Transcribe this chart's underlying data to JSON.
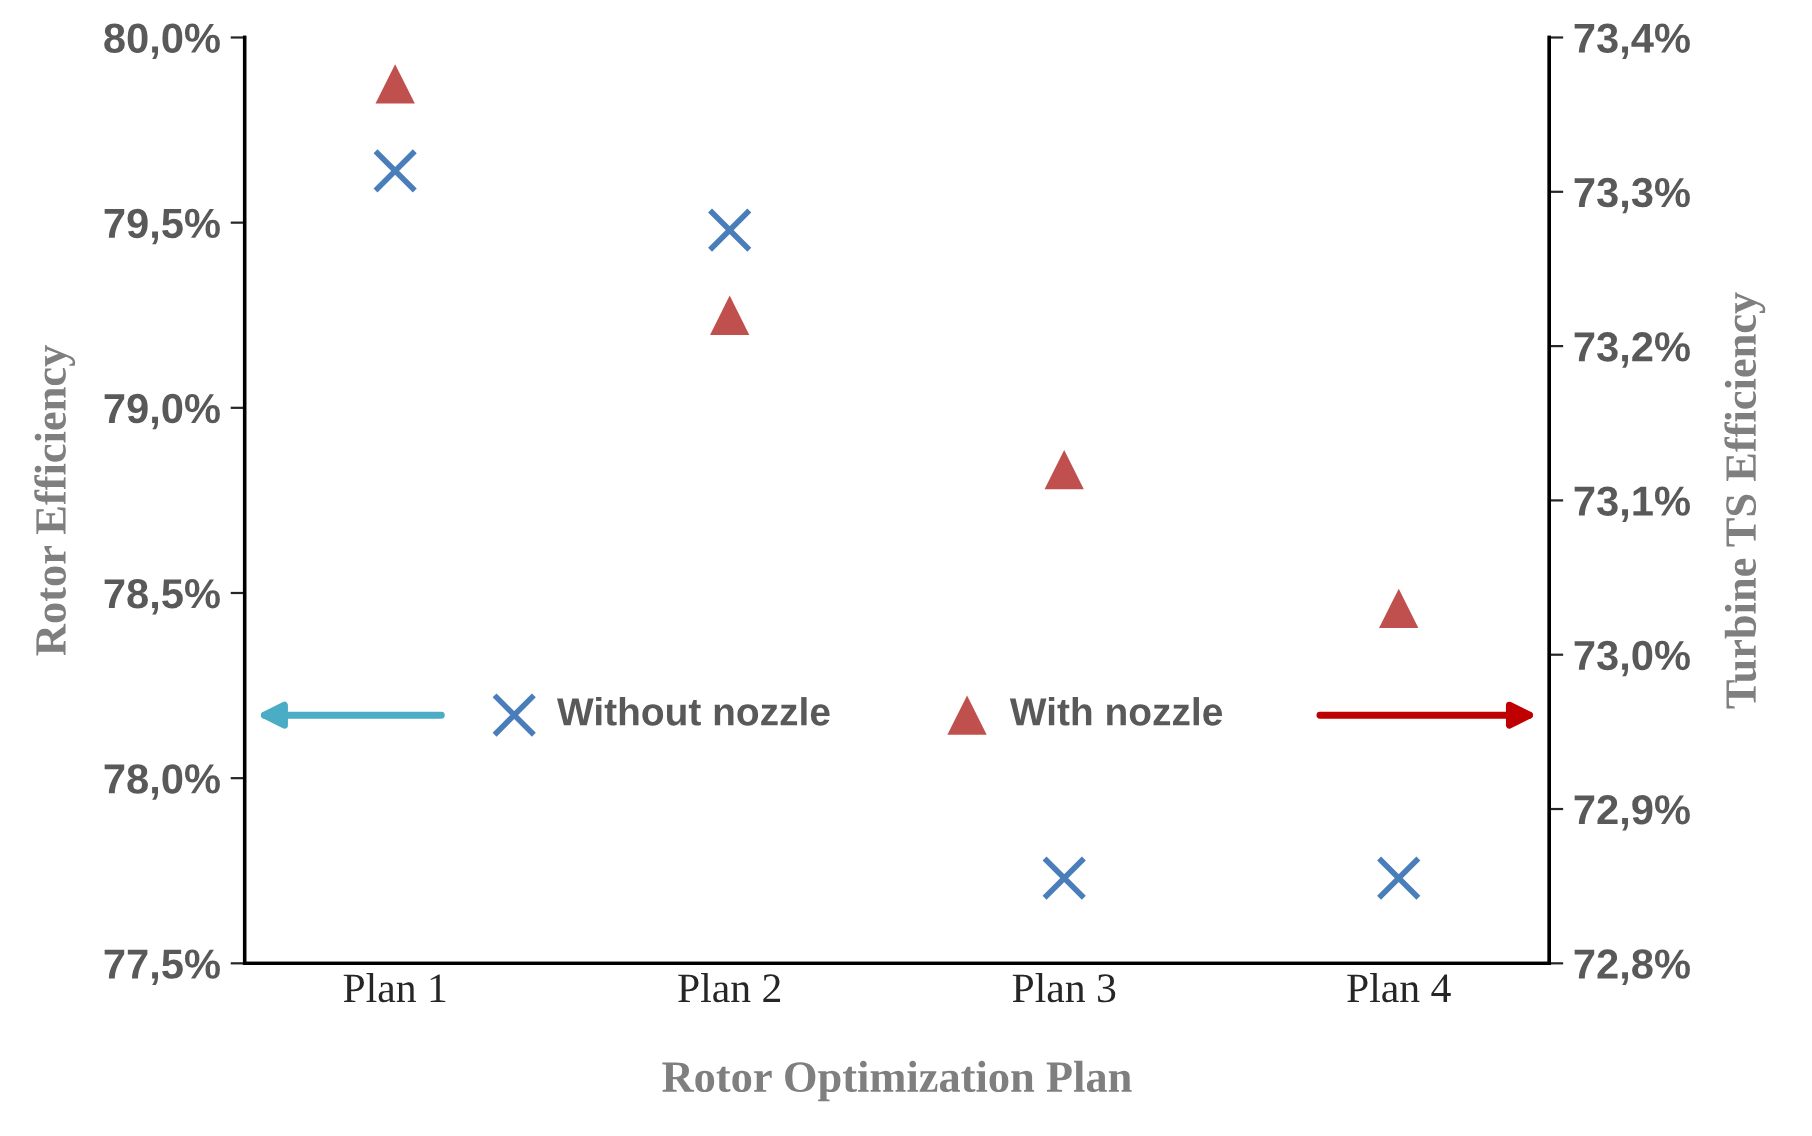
{
  "chart_data": {
    "type": "scatter",
    "xlabel": "Rotor Optimization Plan",
    "ylabel": "Rotor Efficiency",
    "y2label": "Turbine TS Efficiency",
    "categories": [
      "Plan 1",
      "Plan 2",
      "Plan 3",
      "Plan 4"
    ],
    "series": [
      {
        "name": "Without nozzle",
        "color": "#4a7ebb",
        "marker": "cross",
        "values": [
          79.64,
          79.48,
          77.73,
          77.73
        ]
      },
      {
        "name": "With nozzle",
        "color": "#c0504d",
        "marker": "triangle",
        "axis": "y2",
        "values": [
          73.37,
          73.22,
          73.12,
          73.03
        ]
      }
    ],
    "ylim": [
      77.5,
      80.0
    ],
    "yticks": [
      {
        "value": 77.5,
        "label": "77,5%"
      },
      {
        "value": 78.0,
        "label": "78,0%"
      },
      {
        "value": 78.5,
        "label": "78,5%"
      },
      {
        "value": 79.0,
        "label": "79,0%"
      },
      {
        "value": 79.5,
        "label": "79,5%"
      },
      {
        "value": 80.0,
        "label": "80,0%"
      }
    ],
    "y2lim": [
      72.8,
      73.4
    ],
    "y2ticks": [
      {
        "value": 72.8,
        "label": "72,8%"
      },
      {
        "value": 72.9,
        "label": "72,9%"
      },
      {
        "value": 73.0,
        "label": "73,0%"
      },
      {
        "value": 73.1,
        "label": "73,1%"
      },
      {
        "value": 73.2,
        "label": "73,2%"
      },
      {
        "value": 73.3,
        "label": "73,3%"
      },
      {
        "value": 73.4,
        "label": "73,4%"
      }
    ],
    "grid": false,
    "legend": "center left"
  }
}
